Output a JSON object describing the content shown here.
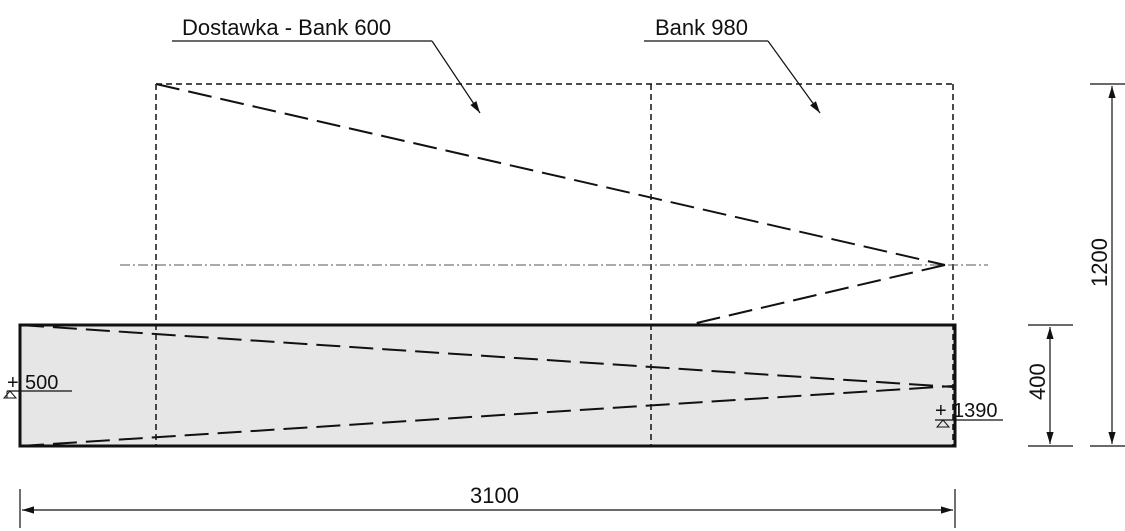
{
  "labels": {
    "dostawka": "Dostawka - Bank 600",
    "bank": "Bank 980"
  },
  "levels": {
    "left": "500",
    "left_sign": "+",
    "right": "1390",
    "right_sign": "+"
  },
  "dimensions": {
    "width": "3100",
    "height_total": "1200",
    "height_lower": "400"
  },
  "colors": {
    "line": "#111111",
    "fill": "#e6e6e6",
    "centerline": "#555555"
  }
}
